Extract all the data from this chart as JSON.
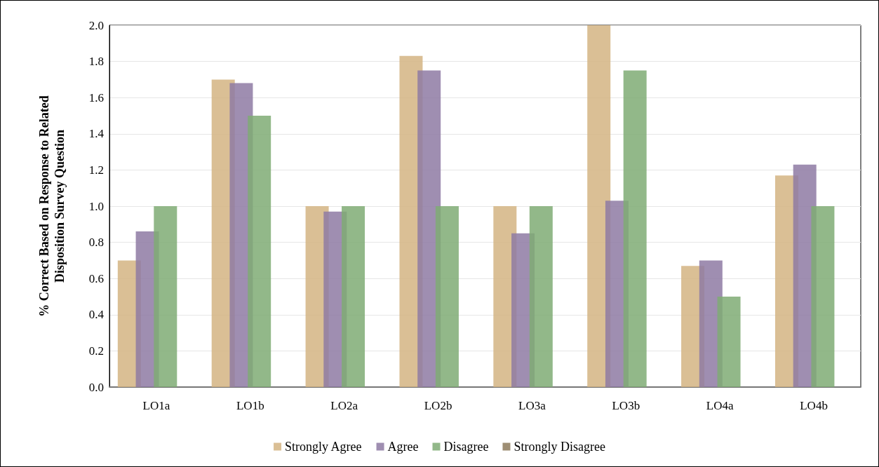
{
  "chart_data": {
    "type": "bar",
    "ylabel": "% Correct Based on Response to Related\nDisposition Survey Question",
    "categories": [
      "LO1a",
      "LO1b",
      "LO2a",
      "LO2b",
      "LO3a",
      "LO3b",
      "LO4a",
      "LO4b"
    ],
    "series": [
      {
        "name": "Strongly Agree",
        "color": "#d4b483",
        "values": [
          0.7,
          1.7,
          1.0,
          1.83,
          1.0,
          2.0,
          0.67,
          1.17
        ]
      },
      {
        "name": "Agree",
        "color": "#8e7aa3",
        "values": [
          0.86,
          1.68,
          0.97,
          1.75,
          0.85,
          1.03,
          0.7,
          1.23
        ]
      },
      {
        "name": "Disagree",
        "color": "#7fab74",
        "values": [
          1.0,
          1.5,
          1.0,
          1.0,
          1.0,
          1.75,
          0.5,
          1.0
        ]
      },
      {
        "name": "Strongly Disagree",
        "color": "#8d7a5c",
        "values": [
          null,
          null,
          null,
          null,
          null,
          null,
          null,
          null
        ]
      }
    ],
    "ylim": [
      0,
      2
    ],
    "yticks": [
      {
        "value": 0,
        "label": "0.0"
      },
      {
        "value": 0.2,
        "label": "0.2"
      },
      {
        "value": 0.4,
        "label": "0.4"
      },
      {
        "value": 0.6,
        "label": "0.6"
      },
      {
        "value": 0.8,
        "label": "0.8"
      },
      {
        "value": 1,
        "label": "1.0"
      },
      {
        "value": 1.2,
        "label": "1.2"
      },
      {
        "value": 1.4,
        "label": "1.4"
      },
      {
        "value": 1.6,
        "label": "1.6"
      },
      {
        "value": 1.8,
        "label": "1.8"
      },
      {
        "value": 2,
        "label": "2.0"
      }
    ],
    "grid": "y",
    "legend": "bottom"
  }
}
